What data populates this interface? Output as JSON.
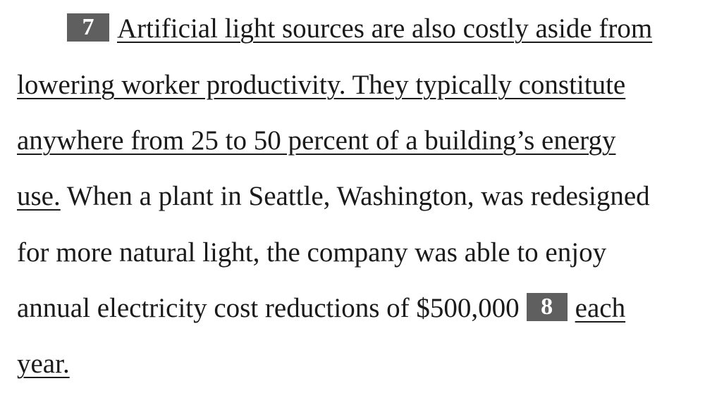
{
  "passage": {
    "question_7_number": "7",
    "line1_underlined": "Artificial light sources are also costly aside from",
    "line2_underlined": "lowering worker productivity. They typically constitute",
    "line3_underlined": "anywhere from 25 to 50 percent of a building’s energy",
    "line4_underlined": "use.",
    "line4_plain": " When a plant in Seattle, Washington, was redesigned",
    "line5_plain": "for more natural light, the company was able to enjoy",
    "line6_plain": "annual electricity cost reductions of $500,000",
    "question_8_number": "8",
    "line6_underlined": "each",
    "line7_underlined": "year."
  }
}
